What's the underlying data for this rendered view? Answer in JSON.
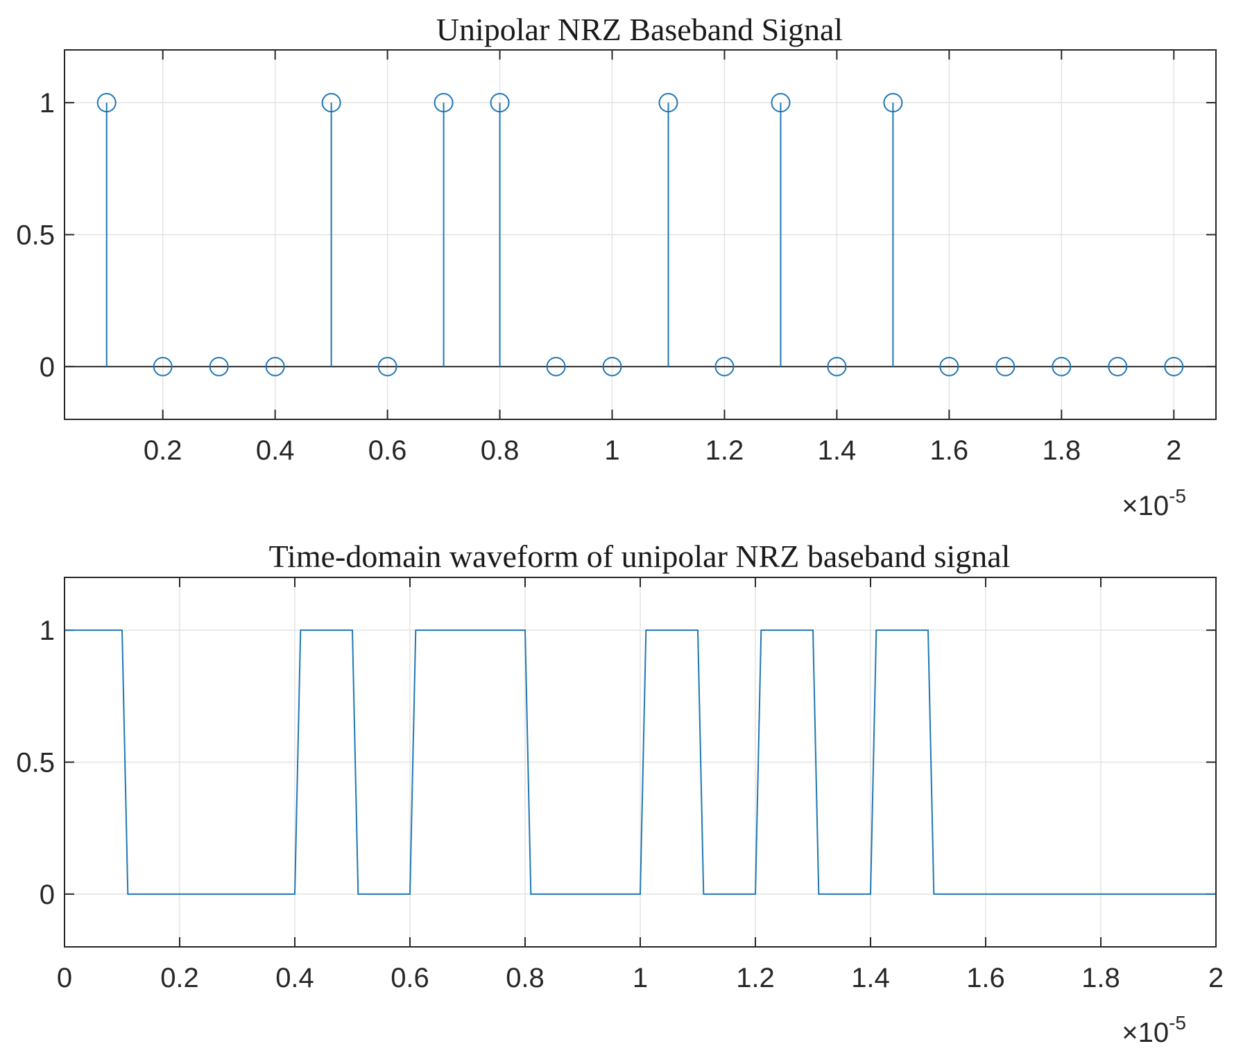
{
  "chart_data": [
    {
      "type": "stem",
      "title": "Unipolar NRZ Baseband Signal",
      "xlabel": "",
      "ylabel": "",
      "x_scale_label": "×10",
      "x_scale_exponent": "-5",
      "xlim": [
        0.025,
        2.075
      ],
      "ylim": [
        -0.2,
        1.2
      ],
      "grid": true,
      "color": "#1f77b4",
      "marker": "circle",
      "x_ticks": [
        0.2,
        0.4,
        0.6,
        0.8,
        1,
        1.2,
        1.4,
        1.6,
        1.8,
        2
      ],
      "x_tick_labels": [
        "0.2",
        "0.4",
        "0.6",
        "0.8",
        "1",
        "1.2",
        "1.4",
        "1.6",
        "1.8",
        "2"
      ],
      "y_ticks": [
        0,
        0.5,
        1
      ],
      "y_tick_labels": [
        "0",
        "0.5",
        "1"
      ],
      "x": [
        0.1,
        0.2,
        0.3,
        0.4,
        0.5,
        0.6,
        0.7,
        0.8,
        0.9,
        1.0,
        1.1,
        1.2,
        1.3,
        1.4,
        1.5,
        1.6,
        1.7,
        1.8,
        1.9,
        2.0
      ],
      "values": [
        1,
        0,
        0,
        0,
        1,
        0,
        1,
        1,
        0,
        0,
        1,
        0,
        1,
        0,
        1,
        0,
        0,
        0,
        0,
        0
      ]
    },
    {
      "type": "line",
      "title": "Time-domain waveform of unipolar NRZ baseband signal",
      "xlabel": "",
      "ylabel": "",
      "x_scale_label": "×10",
      "x_scale_exponent": "-5",
      "xlim": [
        0,
        2
      ],
      "ylim": [
        -0.2,
        1.2
      ],
      "grid": true,
      "color": "#1f77b4",
      "x_ticks": [
        0,
        0.2,
        0.4,
        0.6,
        0.8,
        1,
        1.2,
        1.4,
        1.6,
        1.8,
        2
      ],
      "x_tick_labels": [
        "0",
        "0.2",
        "0.4",
        "0.6",
        "0.8",
        "1",
        "1.2",
        "1.4",
        "1.6",
        "1.8",
        "2"
      ],
      "y_ticks": [
        0,
        0.5,
        1
      ],
      "y_tick_labels": [
        "0",
        "0.5",
        "1"
      ],
      "x": [
        0,
        0.1,
        0.11,
        0.4,
        0.41,
        0.5,
        0.51,
        0.6,
        0.61,
        0.8,
        0.81,
        1.0,
        1.01,
        1.1,
        1.11,
        1.2,
        1.21,
        1.3,
        1.31,
        1.4,
        1.41,
        1.5,
        1.51,
        2.0
      ],
      "y": [
        1,
        1,
        0,
        0,
        1,
        1,
        0,
        0,
        1,
        1,
        0,
        0,
        1,
        1,
        0,
        0,
        1,
        1,
        0,
        0,
        1,
        1,
        0,
        0
      ]
    }
  ]
}
